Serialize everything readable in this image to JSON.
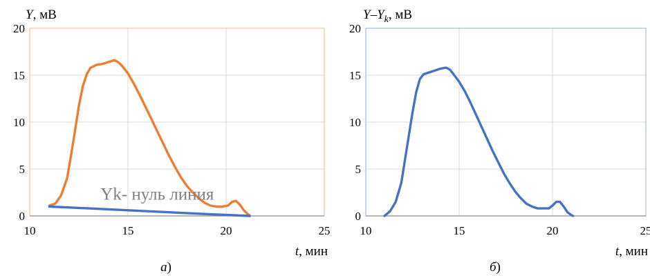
{
  "chart_data": [
    {
      "type": "line",
      "ylabel_var": "Y",
      "ylabel_unit": ", мВ",
      "xlabel_var": "t",
      "xlabel_unit": ", мин",
      "caption_letter": "а",
      "caption_paren": ")",
      "xlim": [
        10,
        25
      ],
      "ylim": [
        0,
        20
      ],
      "xticks": [
        "10",
        "15",
        "20",
        "25"
      ],
      "yticks": [
        "0",
        "5",
        "10",
        "15",
        "20"
      ],
      "frame_color": "#F4B183",
      "annotation": "Yk- нуль линия",
      "annotation_at": [
        13.6,
        2.3
      ],
      "series": [
        {
          "color": "#ED7D31",
          "x": [
            11.0,
            11.3,
            11.6,
            11.9,
            12.1,
            12.3,
            12.5,
            12.7,
            12.9,
            13.1,
            13.4,
            13.7,
            14.0,
            14.3,
            14.5,
            14.7,
            15.0,
            15.3,
            15.6,
            15.9,
            16.2,
            16.5,
            16.8,
            17.1,
            17.4,
            17.7,
            18.0,
            18.3,
            18.6,
            18.9,
            19.2,
            19.5,
            19.8,
            20.1,
            20.3,
            20.5,
            20.7,
            20.9,
            21.1,
            21.2
          ],
          "y": [
            1.1,
            1.3,
            2.2,
            4.0,
            6.4,
            9.0,
            11.7,
            13.8,
            15.1,
            15.8,
            16.1,
            16.2,
            16.4,
            16.6,
            16.4,
            16.0,
            15.2,
            14.1,
            12.9,
            11.6,
            10.3,
            9.0,
            7.7,
            6.4,
            5.2,
            4.1,
            3.2,
            2.5,
            1.9,
            1.4,
            1.1,
            1.0,
            1.0,
            1.1,
            1.5,
            1.6,
            1.2,
            0.6,
            0.2,
            0.05
          ]
        },
        {
          "color": "#4472C4",
          "x": [
            11.0,
            13.0,
            15.0,
            17.0,
            19.0,
            21.2
          ],
          "y": [
            1.0,
            0.8,
            0.6,
            0.4,
            0.2,
            0.0
          ]
        }
      ]
    },
    {
      "type": "line",
      "ylabel_var": "Y–Y",
      "ylabel_sub": "k",
      "ylabel_unit": ", мВ",
      "xlabel_var": "t",
      "xlabel_unit": ", мин",
      "caption_letter": "б",
      "caption_paren": ")",
      "xlim": [
        10,
        25
      ],
      "ylim": [
        0,
        20
      ],
      "xticks": [
        "10",
        "15",
        "20",
        "25"
      ],
      "yticks": [
        "0",
        "5",
        "10",
        "15",
        "20"
      ],
      "frame_color": "#8FAADC",
      "series": [
        {
          "color": "#4472C4",
          "x": [
            11.0,
            11.3,
            11.6,
            11.9,
            12.1,
            12.3,
            12.5,
            12.7,
            12.9,
            13.1,
            13.4,
            13.7,
            14.0,
            14.3,
            14.5,
            14.7,
            15.0,
            15.3,
            15.6,
            15.9,
            16.2,
            16.5,
            16.8,
            17.1,
            17.4,
            17.7,
            18.0,
            18.3,
            18.6,
            18.9,
            19.2,
            19.5,
            19.8,
            20.0,
            20.2,
            20.4,
            20.6,
            20.8,
            21.0,
            21.1
          ],
          "y": [
            0.0,
            0.5,
            1.5,
            3.5,
            6.0,
            8.5,
            11.0,
            13.2,
            14.6,
            15.1,
            15.3,
            15.5,
            15.7,
            15.8,
            15.6,
            15.1,
            14.3,
            13.3,
            12.1,
            10.8,
            9.5,
            8.2,
            6.9,
            5.7,
            4.5,
            3.5,
            2.6,
            1.9,
            1.3,
            1.0,
            0.8,
            0.8,
            0.8,
            1.1,
            1.5,
            1.5,
            1.0,
            0.4,
            0.1,
            0.0
          ]
        }
      ]
    }
  ]
}
